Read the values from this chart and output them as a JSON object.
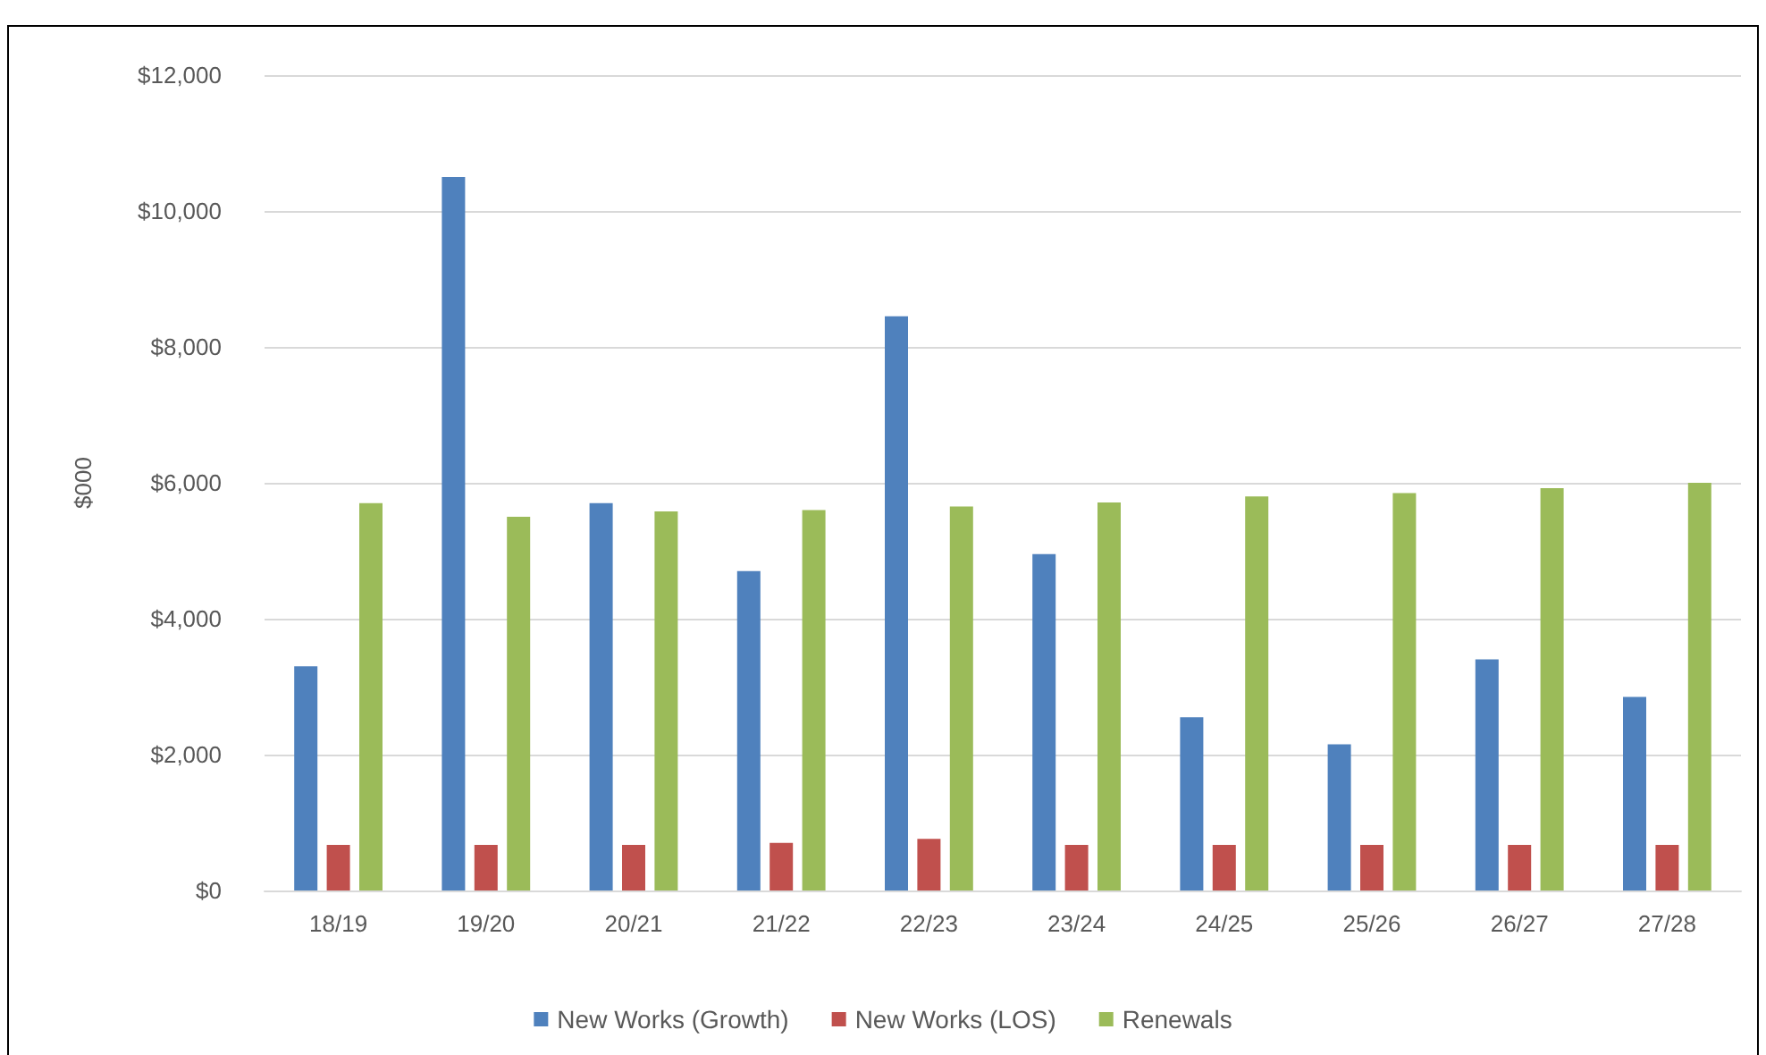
{
  "chart_data": {
    "type": "bar",
    "ylabel": "$000",
    "categories": [
      "18/19",
      "19/20",
      "20/21",
      "21/22",
      "22/23",
      "23/24",
      "24/25",
      "25/26",
      "26/27",
      "27/28"
    ],
    "series": [
      {
        "name": "New Works (Growth)",
        "color": "#4f81bd",
        "values": [
          3300,
          10500,
          5700,
          4700,
          8450,
          4950,
          2550,
          2150,
          3400,
          2850
        ]
      },
      {
        "name": "New Works (LOS)",
        "color": "#c0504d",
        "values": [
          670,
          670,
          670,
          700,
          760,
          670,
          670,
          670,
          670,
          670
        ]
      },
      {
        "name": "Renewals",
        "color": "#9bbb59",
        "values": [
          5700,
          5500,
          5580,
          5600,
          5650,
          5710,
          5800,
          5850,
          5920,
          6000
        ]
      }
    ],
    "ylim": [
      0,
      12000
    ],
    "yticks": [
      {
        "value": 0,
        "label": "$0"
      },
      {
        "value": 2000,
        "label": "$2,000"
      },
      {
        "value": 4000,
        "label": "$4,000"
      },
      {
        "value": 6000,
        "label": "$6,000"
      },
      {
        "value": 8000,
        "label": "$8,000"
      },
      {
        "value": 10000,
        "label": "$10,000"
      },
      {
        "value": 12000,
        "label": "$12,000"
      }
    ],
    "grid": "y",
    "legend": "bottom"
  }
}
